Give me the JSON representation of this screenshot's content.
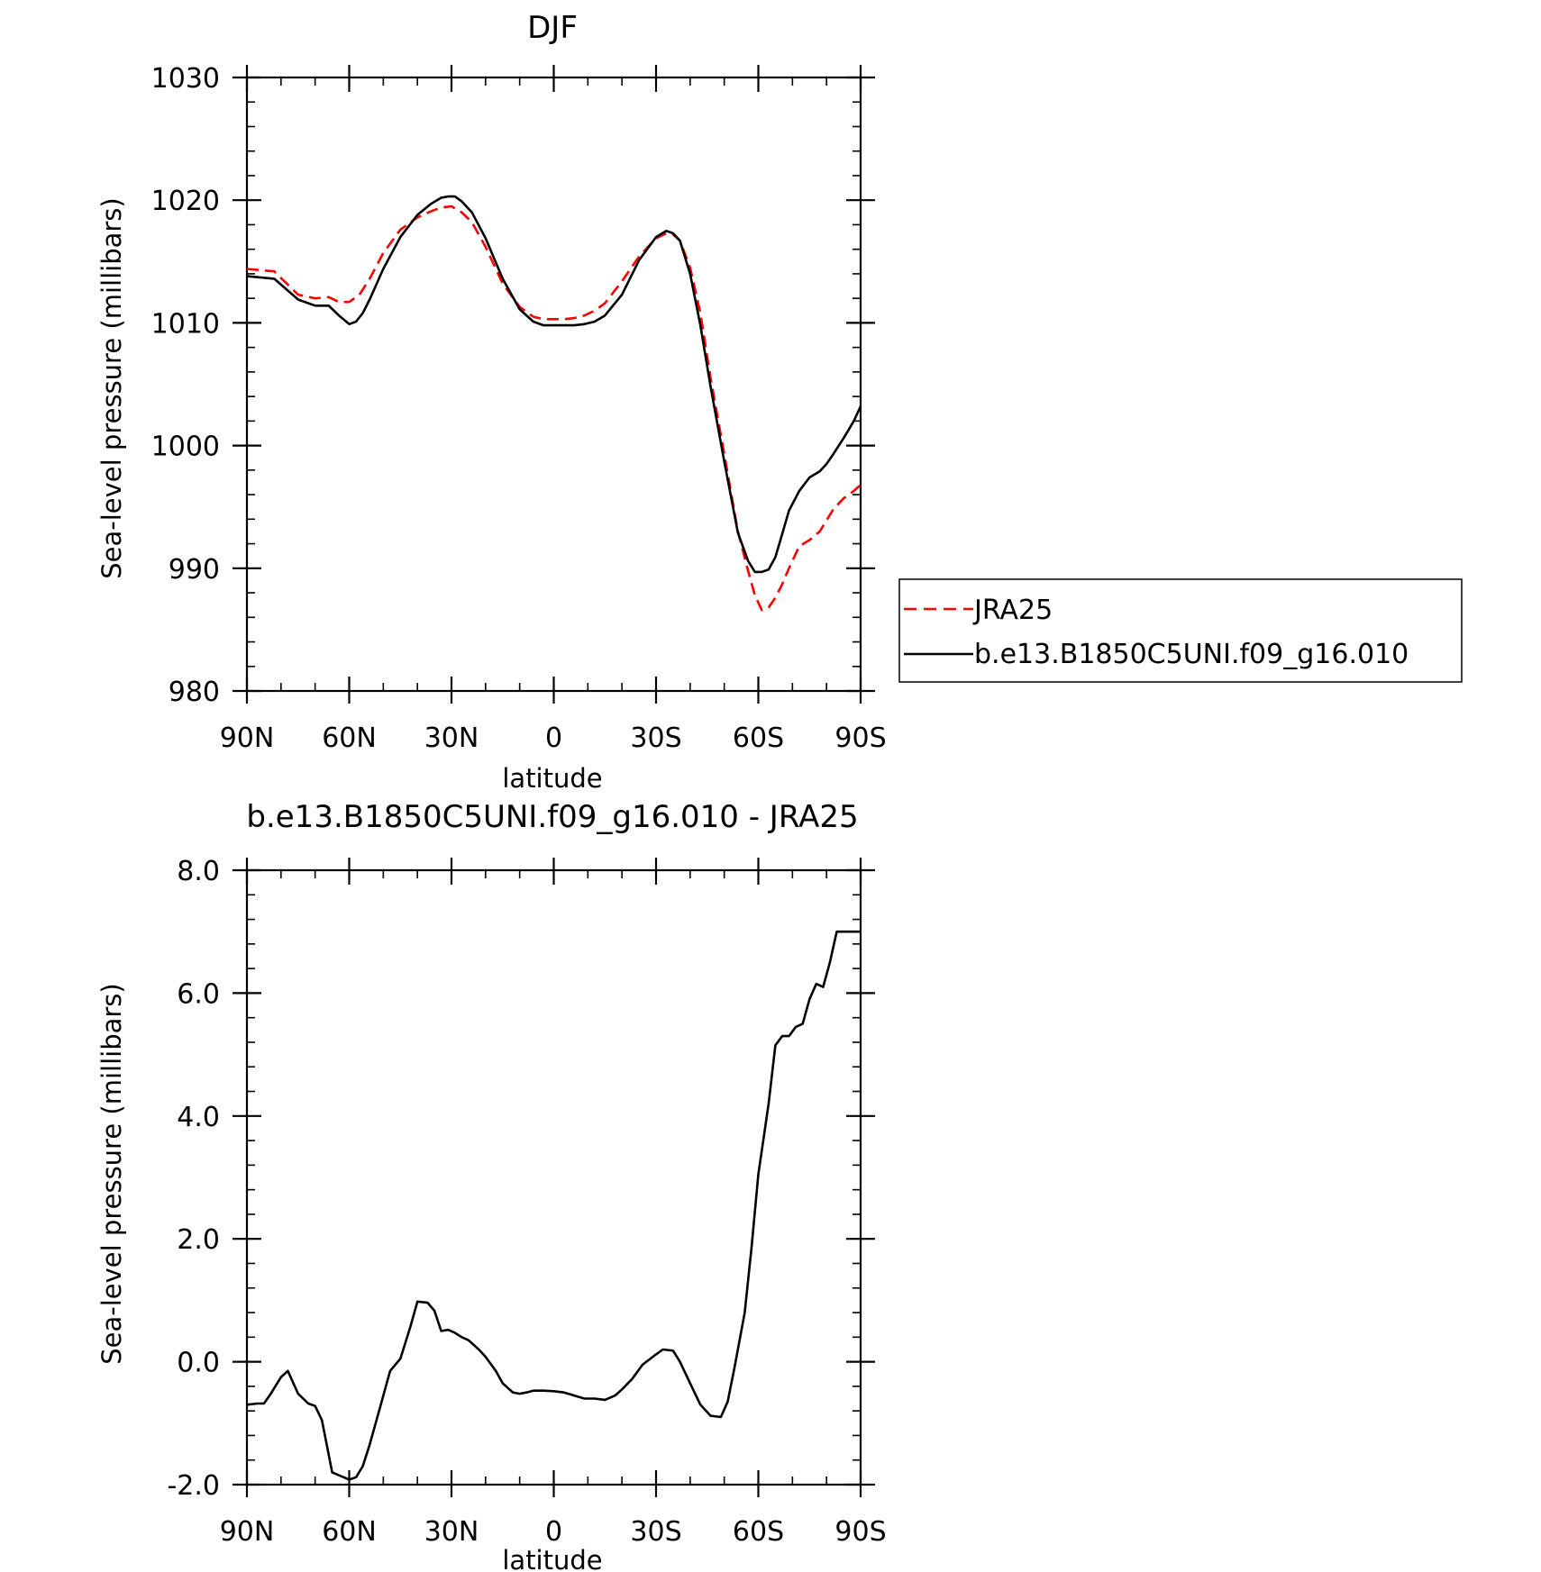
{
  "chart_data": [
    {
      "type": "line",
      "title": "DJF",
      "xlabel": "latitude",
      "ylabel": "Sea-level pressure (millibars)",
      "xlim": [
        90,
        -90
      ],
      "ylim": [
        980,
        1030
      ],
      "x_ticks": [
        90,
        60,
        30,
        0,
        -30,
        -60,
        -90
      ],
      "x_tick_labels": [
        "90N",
        "60N",
        "30N",
        "0",
        "30S",
        "60S",
        "90S"
      ],
      "y_ticks": [
        980,
        990,
        1000,
        1010,
        1020,
        1030
      ],
      "y_tick_labels": [
        "980",
        "990",
        "1000",
        "1010",
        "1020",
        "1030"
      ],
      "legend_position": "right",
      "series": [
        {
          "name": "JRA25",
          "color": "#ff0000",
          "style": "dashed",
          "x": [
            90,
            82,
            75,
            70,
            66,
            63,
            60,
            57,
            54,
            50,
            45,
            40,
            36,
            33,
            30,
            27,
            24,
            20,
            15,
            10,
            6,
            3,
            0,
            -3,
            -6,
            -9,
            -12,
            -15,
            -20,
            -25,
            -30,
            -33,
            -35,
            -37,
            -40,
            -43,
            -46,
            -50,
            -54,
            -57,
            -59,
            -61,
            -63,
            -65,
            -67,
            -69,
            -72,
            -75,
            -78,
            -82,
            -85,
            -88,
            -90
          ],
          "y": [
            1014.4,
            1014.2,
            1012.3,
            1012.0,
            1012.1,
            1011.7,
            1011.7,
            1012.3,
            1013.6,
            1015.7,
            1017.6,
            1018.6,
            1019.1,
            1019.4,
            1019.5,
            1019.0,
            1018.2,
            1016.2,
            1013.2,
            1011.3,
            1010.5,
            1010.3,
            1010.3,
            1010.3,
            1010.4,
            1010.6,
            1011.0,
            1011.6,
            1013.4,
            1015.4,
            1016.9,
            1017.3,
            1017.2,
            1016.7,
            1014.5,
            1010.8,
            1005.5,
            999.3,
            993.0,
            989.8,
            987.8,
            986.6,
            986.8,
            987.6,
            988.7,
            990.0,
            991.8,
            992.3,
            993.0,
            994.8,
            995.7,
            996.3,
            996.8
          ]
        },
        {
          "name": "b.e13.B1850C5UNI.f09_g16.010",
          "color": "#000000",
          "style": "solid",
          "x": [
            90,
            82,
            75,
            70,
            66,
            63,
            60,
            58,
            56,
            54,
            50,
            45,
            40,
            36,
            33,
            31,
            29,
            27,
            24,
            20,
            15,
            10,
            6,
            3,
            0,
            -3,
            -6,
            -9,
            -12,
            -15,
            -20,
            -25,
            -30,
            -33,
            -35,
            -37,
            -40,
            -43,
            -46,
            -50,
            -54,
            -57,
            -59,
            -61,
            -63,
            -65,
            -67,
            -69,
            -72,
            -75,
            -78,
            -80,
            -82,
            -85,
            -88,
            -90
          ],
          "y": [
            1013.8,
            1013.6,
            1011.9,
            1011.4,
            1011.4,
            1010.6,
            1009.9,
            1010.1,
            1010.8,
            1011.9,
            1014.4,
            1017.0,
            1018.8,
            1019.7,
            1020.2,
            1020.3,
            1020.3,
            1019.9,
            1019.0,
            1016.9,
            1013.6,
            1011.1,
            1010.1,
            1009.8,
            1009.8,
            1009.8,
            1009.8,
            1009.9,
            1010.1,
            1010.6,
            1012.3,
            1015.1,
            1017.0,
            1017.5,
            1017.3,
            1016.7,
            1014.0,
            1009.8,
            1004.8,
            998.7,
            992.9,
            990.6,
            989.7,
            989.7,
            989.9,
            990.9,
            992.8,
            994.7,
            996.3,
            997.4,
            997.9,
            998.5,
            999.3,
            1000.6,
            1002.0,
            1003.2
          ]
        }
      ]
    },
    {
      "type": "line",
      "title": "b.e13.B1850C5UNI.f09_g16.010 - JRA25",
      "xlabel": "latitude",
      "ylabel": "Sea-level pressure (millibars)",
      "xlim": [
        90,
        -90
      ],
      "ylim": [
        -2.0,
        8.0
      ],
      "x_ticks": [
        90,
        60,
        30,
        0,
        -30,
        -60,
        -90
      ],
      "x_tick_labels": [
        "90N",
        "60N",
        "30N",
        "0",
        "30S",
        "60S",
        "90S"
      ],
      "y_ticks": [
        -2.0,
        0.0,
        2.0,
        4.0,
        6.0,
        8.0
      ],
      "y_tick_labels": [
        "-2.0",
        "0.0",
        "2.0",
        "4.0",
        "6.0",
        "8.0"
      ],
      "series": [
        {
          "color": "#000000",
          "style": "solid",
          "x": [
            90,
            87,
            85,
            83,
            80,
            78,
            75,
            72,
            70,
            68,
            65,
            60,
            58,
            56,
            54,
            51,
            48,
            45,
            42,
            40,
            37,
            35,
            33,
            31,
            29,
            27,
            25,
            22,
            20,
            17,
            15,
            12,
            10,
            8,
            6,
            3,
            0,
            -3,
            -6,
            -9,
            -12,
            -15,
            -18,
            -20,
            -23,
            -26,
            -30,
            -32,
            -35,
            -37,
            -40,
            -43,
            -46,
            -49,
            -51,
            -53,
            -56,
            -58,
            -60,
            -63,
            -65,
            -67,
            -69,
            -71,
            -73,
            -75,
            -77,
            -79,
            -81,
            -83,
            -85,
            -87,
            -88,
            -90
          ],
          "y": [
            -0.7,
            -0.68,
            -0.68,
            -0.52,
            -0.25,
            -0.15,
            -0.52,
            -0.68,
            -0.72,
            -0.95,
            -1.8,
            -1.92,
            -1.88,
            -1.7,
            -1.35,
            -0.75,
            -0.15,
            0.05,
            0.58,
            0.98,
            0.96,
            0.83,
            0.5,
            0.52,
            0.47,
            0.4,
            0.35,
            0.2,
            0.08,
            -0.15,
            -0.35,
            -0.5,
            -0.52,
            -0.5,
            -0.47,
            -0.47,
            -0.48,
            -0.5,
            -0.55,
            -0.6,
            -0.6,
            -0.62,
            -0.55,
            -0.45,
            -0.28,
            -0.05,
            0.12,
            0.2,
            0.18,
            0.0,
            -0.35,
            -0.7,
            -0.88,
            -0.9,
            -0.65,
            -0.1,
            0.8,
            1.85,
            3.05,
            4.2,
            5.15,
            5.3,
            5.3,
            5.45,
            5.5,
            5.9,
            6.15,
            6.1,
            6.5,
            7.0,
            7.0,
            7.0,
            7.0,
            7.0
          ]
        }
      ]
    }
  ]
}
